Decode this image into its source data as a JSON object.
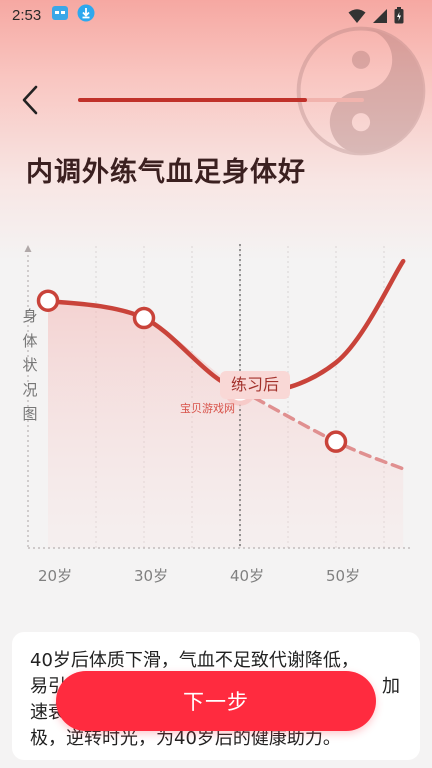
{
  "status_bar": {
    "time": "2:53",
    "icons": [
      "game-app-icon",
      "download-icon",
      "wifi-icon",
      "signal-icon",
      "battery-icon"
    ]
  },
  "header": {
    "back_icon": "chevron-left-icon",
    "progress_fraction": 0.8,
    "title": "内调外练气血足身体好"
  },
  "chart_data": {
    "type": "line",
    "ylabel": "身体状况图",
    "categories": [
      "20岁",
      "30岁",
      "40岁",
      "50岁"
    ],
    "series": [
      {
        "name": "",
        "style": "solid",
        "x": [
          20,
          30,
          40,
          50,
          57
        ],
        "values": [
          100,
          93,
          64,
          75,
          116
        ]
      },
      {
        "name": "",
        "style": "dashed",
        "x": [
          20,
          30,
          40,
          50,
          57
        ],
        "values": [
          100,
          93,
          64,
          43,
          32
        ]
      }
    ],
    "annotation": "练习后",
    "xlim": [
      18,
      58
    ],
    "ylim": [
      0,
      110
    ],
    "grid": "vertical-dotted"
  },
  "watermark": "宝贝游戏网",
  "card": {
    "lines": [
      "40岁后体质下滑，气血不足致代谢降低，",
      "易引",
      "加",
      "速衰",
      "",
      "极，逆转时光，为40岁后的健康助力。"
    ]
  },
  "next_button": {
    "label": "下一步"
  },
  "colors": {
    "accent": "#ff2b3f",
    "line": "#c0312a",
    "dashed": "#e09090",
    "progress_fill": "#c0312a",
    "progress_track": "#f1b3ad"
  }
}
